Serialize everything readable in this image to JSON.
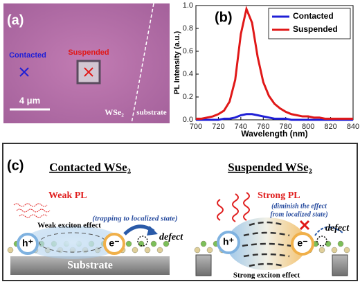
{
  "panel_a": {
    "label": "(a)",
    "contacted": "Contacted",
    "suspended": "Suspended",
    "scale_bar": "4 μm",
    "material": "WSe₂",
    "substrate": "substrate"
  },
  "chart_data": {
    "type": "line",
    "label": "(b)",
    "x_label": "Wavelength (nm)",
    "y_label": "PL Intensity (a.u.)",
    "x": [
      700,
      705,
      710,
      715,
      720,
      725,
      730,
      735,
      740,
      745,
      750,
      755,
      760,
      765,
      770,
      775,
      780,
      785,
      790,
      795,
      800,
      805,
      810,
      815,
      820,
      825,
      830,
      835,
      840
    ],
    "series": [
      {
        "name": "Contacted",
        "color": "#1f1fd6",
        "values": [
          0,
          0,
          0,
          0,
          0,
          0.01,
          0.01,
          0.02,
          0.04,
          0.05,
          0.05,
          0.04,
          0.03,
          0.02,
          0.01,
          0.01,
          0.01,
          0,
          0,
          0,
          0,
          0,
          0,
          0,
          0,
          0,
          0,
          0,
          0
        ]
      },
      {
        "name": "Suspended",
        "color": "#e01818",
        "values": [
          0.01,
          0.01,
          0.02,
          0.03,
          0.05,
          0.08,
          0.16,
          0.35,
          0.75,
          0.97,
          0.85,
          0.55,
          0.33,
          0.21,
          0.14,
          0.1,
          0.07,
          0.05,
          0.04,
          0.03,
          0.03,
          0.02,
          0.02,
          0.01,
          0.01,
          0.01,
          0.01,
          0.01,
          0.01
        ]
      }
    ],
    "xlim": [
      700,
      840
    ],
    "ylim": [
      0,
      1
    ],
    "xticks": [
      700,
      720,
      740,
      760,
      780,
      800,
      820,
      840
    ],
    "yticks": [
      {
        "value": 0,
        "label": "0.0"
      },
      0.2,
      0.4,
      0.6,
      0.8,
      {
        "value": 1,
        "label": "1.0"
      }
    ],
    "legend": "upper right"
  },
  "panel_c": {
    "label": "(c)",
    "left": {
      "title": "Contacted WSe₂",
      "pl": "Weak PL",
      "exciton": "Weak exciton effect",
      "note": "(trapping to localized state)",
      "defect": "defect",
      "substrate": "Substrate",
      "hole": "h⁺",
      "electron": "e⁻"
    },
    "right": {
      "title": "Suspended WSe₂",
      "pl": "Strong PL",
      "exciton": "Strong exciton effect",
      "note": [
        "(diminish the effect",
        "from localized state)"
      ],
      "defect": "defect",
      "hole": "h⁺",
      "electron": "e⁻"
    }
  }
}
